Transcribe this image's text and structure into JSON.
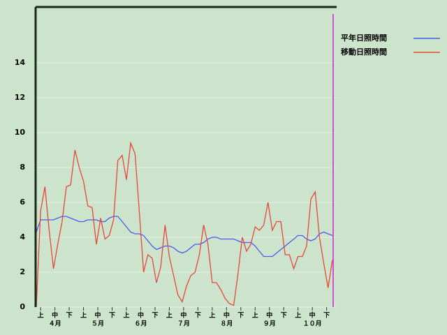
{
  "chart_data": {
    "type": "line",
    "x": [
      0,
      3,
      6,
      9,
      12,
      15,
      18,
      21,
      24,
      27,
      30,
      33,
      36,
      39,
      42,
      45,
      48,
      51,
      54,
      57,
      60,
      63,
      66,
      69,
      72,
      75,
      78,
      81,
      84,
      87,
      90,
      93,
      96,
      99,
      102,
      105,
      108,
      111,
      114,
      117,
      120,
      123,
      126,
      129,
      132,
      135,
      138,
      141,
      144,
      147,
      150,
      153,
      156,
      159,
      162,
      165,
      168,
      171,
      174,
      177,
      180,
      183,
      186,
      189,
      192,
      195,
      198,
      201,
      204,
      207
    ],
    "xlim": [
      0,
      210
    ],
    "xticks": [
      {
        "value": 3,
        "label": "上"
      },
      {
        "value": 13,
        "label": "中"
      },
      {
        "value": 23,
        "label": "下"
      },
      {
        "value": 33,
        "label": "上"
      },
      {
        "value": 43,
        "label": "中"
      },
      {
        "value": 53,
        "label": "下"
      },
      {
        "value": 63,
        "label": "上"
      },
      {
        "value": 73,
        "label": "中"
      },
      {
        "value": 83,
        "label": "下"
      },
      {
        "value": 93,
        "label": "上"
      },
      {
        "value": 103,
        "label": "中"
      },
      {
        "value": 113,
        "label": "下"
      },
      {
        "value": 123,
        "label": "上"
      },
      {
        "value": 133,
        "label": "中"
      },
      {
        "value": 143,
        "label": "下"
      },
      {
        "value": 153,
        "label": "上"
      },
      {
        "value": 163,
        "label": "中"
      },
      {
        "value": 173,
        "label": "下"
      },
      {
        "value": 183,
        "label": "上"
      },
      {
        "value": 193,
        "label": "中"
      },
      {
        "value": 203,
        "label": "下"
      }
    ],
    "month_ticks": [
      {
        "value": 13,
        "label": "４月"
      },
      {
        "value": 43,
        "label": "５月"
      },
      {
        "value": 73,
        "label": "６月"
      },
      {
        "value": 103,
        "label": "７月"
      },
      {
        "value": 133,
        "label": "８月"
      },
      {
        "value": 163,
        "label": "９月"
      },
      {
        "value": 193,
        "label": "１０月"
      }
    ],
    "ylim": [
      0,
      17.2
    ],
    "yticks": [
      0,
      2,
      4,
      6,
      8,
      10,
      12,
      14
    ],
    "grid": true,
    "legend": "top-right",
    "series": [
      {
        "name": "平年日照時間",
        "color": "#4a5ce8",
        "values": [
          4.3,
          5.0,
          5.0,
          5.0,
          5.0,
          5.1,
          5.2,
          5.2,
          5.1,
          5.0,
          4.9,
          4.9,
          5.0,
          5.0,
          5.0,
          4.9,
          4.9,
          5.1,
          5.2,
          5.2,
          4.9,
          4.6,
          4.3,
          4.2,
          4.2,
          4.1,
          3.8,
          3.5,
          3.3,
          3.4,
          3.5,
          3.5,
          3.4,
          3.2,
          3.1,
          3.2,
          3.4,
          3.6,
          3.6,
          3.7,
          3.9,
          4.0,
          4.0,
          3.9,
          3.9,
          3.9,
          3.9,
          3.8,
          3.7,
          3.7,
          3.7,
          3.5,
          3.2,
          2.9,
          2.9,
          2.9,
          3.1,
          3.3,
          3.5,
          3.7,
          3.9,
          4.1,
          4.1,
          3.9,
          3.8,
          3.9,
          4.2,
          4.3,
          4.2,
          4.1
        ]
      },
      {
        "name": "移動日照時間",
        "color": "#e8463a",
        "values": [
          0,
          5.5,
          6.9,
          4.4,
          2.2,
          3.6,
          4.9,
          6.9,
          7.0,
          9.0,
          8.0,
          7.2,
          5.8,
          5.7,
          3.6,
          5.1,
          3.9,
          4.1,
          5.0,
          8.4,
          8.7,
          7.3,
          9.4,
          8.8,
          5.5,
          2.0,
          3.0,
          2.8,
          1.4,
          2.3,
          4.7,
          2.9,
          1.8,
          0.7,
          0.3,
          1.2,
          1.8,
          2.0,
          3.0,
          4.7,
          3.6,
          1.4,
          1.4,
          1.0,
          0.5,
          0.2,
          0.1,
          1.9,
          4.0,
          3.2,
          3.6,
          4.6,
          4.4,
          4.7,
          6.0,
          4.4,
          4.9,
          4.9,
          3.0,
          3.0,
          2.2,
          2.9,
          2.9,
          3.5,
          6.2,
          6.6,
          4.0,
          2.5,
          1.1,
          2.7
        ]
      }
    ]
  }
}
